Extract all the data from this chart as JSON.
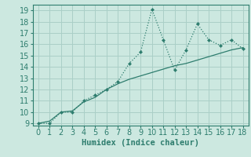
{
  "xlabel": "Humidex (Indice chaleur)",
  "bg_color": "#cce8e0",
  "line_color": "#2e7d6e",
  "grid_color": "#aacfc7",
  "xlim": [
    -0.5,
    18.5
  ],
  "ylim": [
    8.8,
    19.5
  ],
  "xticks": [
    0,
    1,
    2,
    3,
    4,
    5,
    6,
    7,
    8,
    9,
    10,
    11,
    12,
    13,
    14,
    15,
    16,
    17,
    18
  ],
  "yticks": [
    9,
    10,
    11,
    12,
    13,
    14,
    15,
    16,
    17,
    18,
    19
  ],
  "series1_x": [
    0,
    1,
    2,
    3,
    4,
    5,
    6,
    7,
    8,
    9,
    10,
    11,
    12,
    13,
    14,
    15,
    16,
    17,
    18
  ],
  "series1_y": [
    9,
    9,
    10,
    10,
    11,
    11.5,
    12,
    12.7,
    14.3,
    15.3,
    19.1,
    16.4,
    13.7,
    15.5,
    17.8,
    16.4,
    15.9,
    16.4,
    15.6
  ],
  "series2_x": [
    0,
    1,
    2,
    3,
    4,
    5,
    6,
    7,
    8,
    9,
    10,
    11,
    12,
    13,
    14,
    15,
    16,
    17,
    18
  ],
  "series2_y": [
    9,
    9.2,
    10.0,
    10.1,
    10.9,
    11.3,
    12.0,
    12.5,
    12.9,
    13.2,
    13.5,
    13.8,
    14.1,
    14.3,
    14.6,
    14.9,
    15.2,
    15.5,
    15.7
  ],
  "tick_fontsize": 7,
  "xlabel_fontsize": 7.5
}
